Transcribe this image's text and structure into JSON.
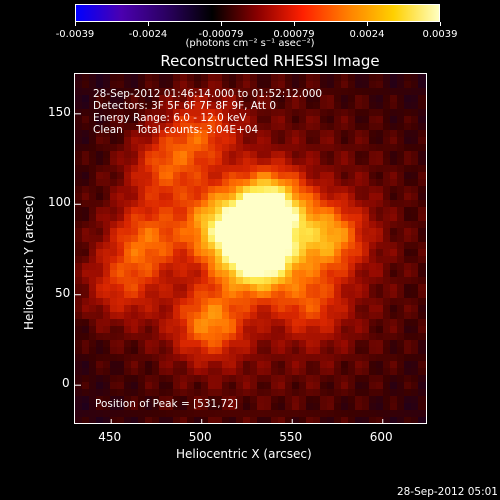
{
  "colorbar": {
    "tick_labels": [
      "-0.0039",
      "-0.0024",
      "-0.00079",
      "0.00079",
      "0.0024",
      "0.0039"
    ],
    "units": "(photons cm⁻² s⁻¹ asec⁻²)",
    "colormap": [
      "#0000ff",
      "#4b00b0",
      "#2a0060",
      "#000000",
      "#8a0000",
      "#ff2000",
      "#ff8000",
      "#ffd000",
      "#ffffc0"
    ]
  },
  "chart_data": {
    "type": "heatmap",
    "title": "Reconstructed RHESSI Image",
    "xlabel": "Heliocentric X (arcsec)",
    "ylabel": "Heliocentric Y (arcsec)",
    "xlim": [
      430,
      625
    ],
    "ylim": [
      -22,
      172
    ],
    "x_ticks": [
      450,
      500,
      550,
      600
    ],
    "y_ticks": [
      0,
      50,
      100,
      150
    ],
    "annotations": [
      "28-Sep-2012 01:46:14.000 to 01:52:12.000",
      "Detectors: 3F 5F 6F 7F 8F 9F, Att 0",
      "Energy Range: 6.0 - 12.0 keV",
      "Clean    Total counts: 3.04E+04"
    ],
    "peak_label": "Position of Peak = [531,72]",
    "peak": [
      531,
      72
    ],
    "sources": [
      {
        "x": 531,
        "y": 72,
        "intensity": 1.0
      },
      {
        "x": 537,
        "y": 98,
        "intensity": 0.85
      },
      {
        "x": 510,
        "y": 88,
        "intensity": 0.55
      },
      {
        "x": 570,
        "y": 82,
        "intensity": 0.5
      },
      {
        "x": 505,
        "y": 35,
        "intensity": 0.45
      },
      {
        "x": 470,
        "y": 80,
        "intensity": 0.35
      },
      {
        "x": 480,
        "y": 120,
        "intensity": 0.3
      },
      {
        "x": 500,
        "y": 140,
        "intensity": 0.3
      },
      {
        "x": 560,
        "y": 45,
        "intensity": 0.3
      },
      {
        "x": 455,
        "y": 55,
        "intensity": 0.25
      }
    ]
  },
  "footer": "28-Sep-2012 05:01"
}
